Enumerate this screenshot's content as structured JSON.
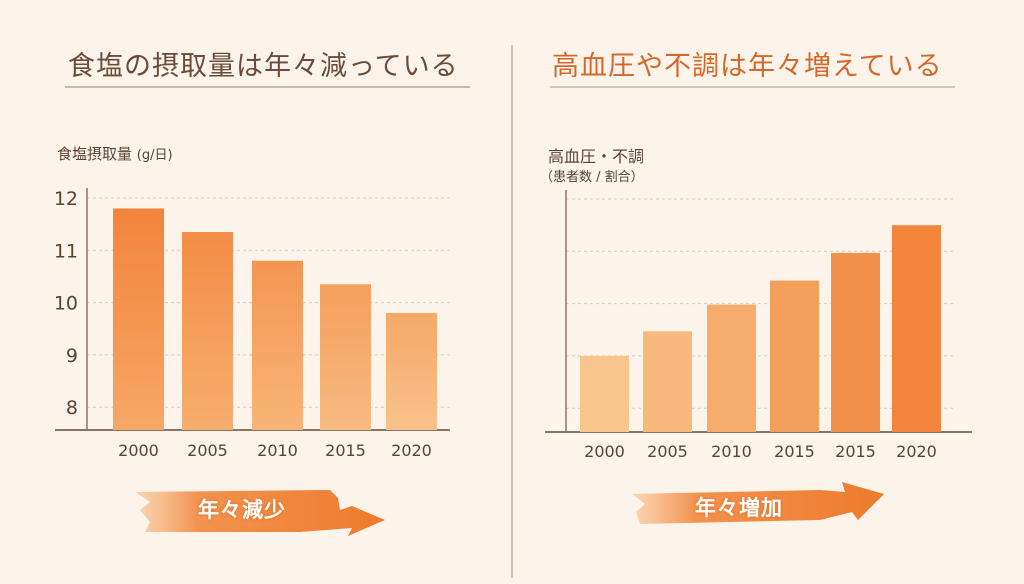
{
  "left_panel": {
    "title": "食塩の摂取量は年々減っている",
    "ylabel": "食塩摂取量",
    "yunit": "(g/日)",
    "badge": "年々減少"
  },
  "right_panel": {
    "title": "高血圧や不調は年々増えている",
    "ylabel": "高血圧・不調",
    "ysub": "（患者数 / 割合）",
    "badge": "年々増加"
  },
  "colors": {
    "title_left": "#6b4c3a",
    "title_right": "#d4682a",
    "bar_dark": "#f2843c",
    "bar_light": "#f8c68c",
    "background": "#fcf4ea"
  },
  "chart_data": [
    {
      "type": "bar",
      "title": "食塩の摂取量は年々減っている",
      "ylabel": "食塩摂取量 (g/日)",
      "xlabel": "",
      "categories": [
        "2000",
        "2005",
        "2010",
        "2015",
        "2020"
      ],
      "values": [
        11.8,
        11.35,
        10.8,
        10.35,
        9.8
      ],
      "yticks": [
        "8",
        "9",
        "10",
        "11",
        "12"
      ],
      "ylim": [
        7.55,
        12.2
      ],
      "grid": true
    },
    {
      "type": "bar",
      "title": "高血圧や不調は年々増えている",
      "ylabel": "高血圧・不調（患者数 / 割合）",
      "xlabel": "",
      "categories": [
        "2000",
        "2005",
        "2010",
        "2015",
        "2015",
        "2020"
      ],
      "values": [
        9.0,
        9.47,
        9.98,
        10.44,
        10.97,
        11.5
      ],
      "yticks": [],
      "ylim": [
        7.55,
        12.2
      ],
      "grid": true
    }
  ]
}
